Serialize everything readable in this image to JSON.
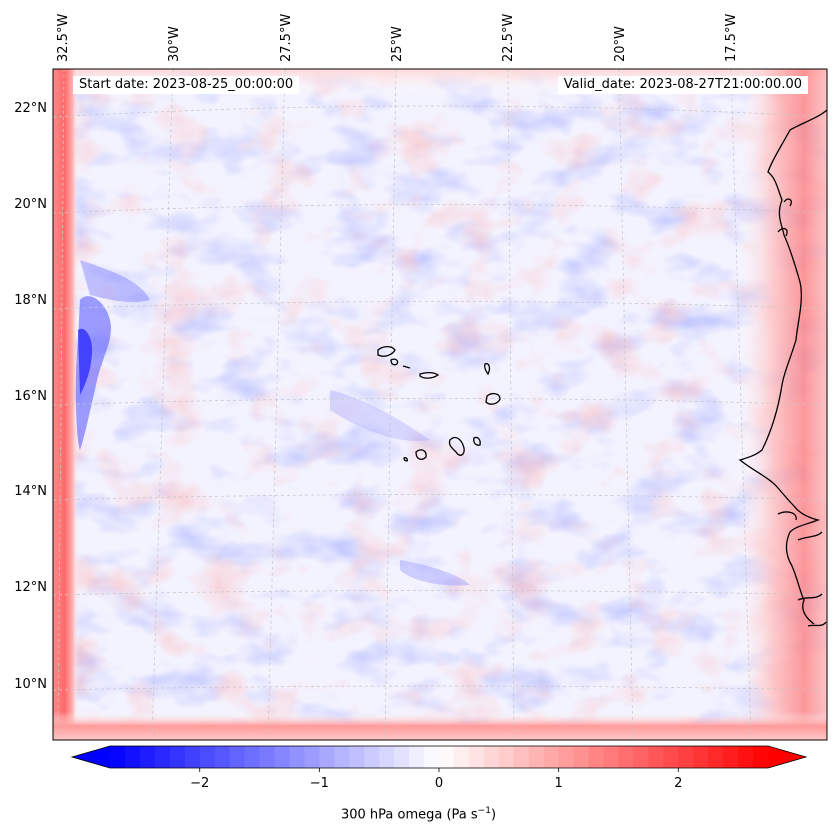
{
  "map": {
    "start_date_text": "Start date: 2023-08-25_00:00:00",
    "valid_date_text": "Valid_date: 2023-08-27T21:00:00.00",
    "longitude_labels": [
      "32.5°W",
      "30°W",
      "27.5°W",
      "25°W",
      "22.5°W",
      "20°W",
      "17.5°W"
    ],
    "latitude_labels": [
      "22°N",
      "20°N",
      "18°N",
      "16°N",
      "14°N",
      "12°N",
      "10°N"
    ],
    "variable": "300 hPa omega",
    "colormap": "bwr",
    "colors": {
      "negative": "#0000ff",
      "zero": "#ffffff",
      "positive": "#ff0000",
      "coast": "#000000",
      "grid": "#c8c8c8"
    }
  },
  "colorbar": {
    "label_prefix": "300 hPa omega (Pa s",
    "label_exponent": "−1",
    "label_suffix": ")",
    "tick_labels": [
      "−2",
      "−1",
      "0",
      "1",
      "2"
    ],
    "tick_values": [
      -2,
      -1,
      0,
      1,
      2
    ],
    "range": [
      -2.75,
      2.75
    ],
    "extend": "both"
  }
}
